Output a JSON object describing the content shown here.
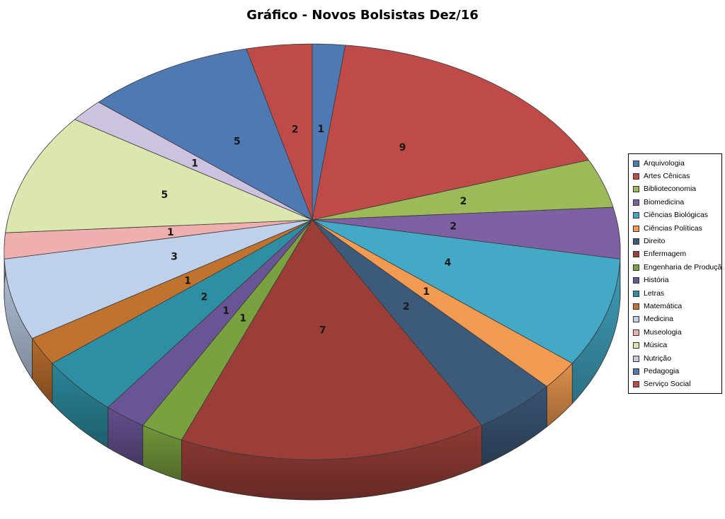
{
  "chart_data": {
    "type": "pie",
    "style": "3d",
    "title": "Gráfico - Novos Bolsistas Dez/16",
    "total": 50,
    "start_angle_deg": 0,
    "direction": "clockwise",
    "legend_position": "right",
    "data_labels": "value",
    "series": [
      {
        "label": "Arquivologia",
        "value": 1,
        "color": "#4E79B2"
      },
      {
        "label": "Artes Cênicas",
        "value": 9,
        "color": "#BE4B47"
      },
      {
        "label": "Biblioteconomia",
        "value": 2,
        "color": "#9CBA58"
      },
      {
        "label": "Biomedicina",
        "value": 2,
        "color": "#7E61A3"
      },
      {
        "label": "Ciências Biológicas",
        "value": 4,
        "color": "#43A9C6"
      },
      {
        "label": "Ciências Políticas",
        "value": 1,
        "color": "#F09B51"
      },
      {
        "label": "Direito",
        "value": 2,
        "color": "#3C5A7A"
      },
      {
        "label": "Enfermagem",
        "value": 7,
        "color": "#9B3E38"
      },
      {
        "label": "Engenharia de Produção",
        "value": 1,
        "color": "#7AA13F"
      },
      {
        "label": "História",
        "value": 1,
        "color": "#695596"
      },
      {
        "label": "Letras",
        "value": 2,
        "color": "#2E8FA4"
      },
      {
        "label": "Matemática",
        "value": 1,
        "color": "#C0722F"
      },
      {
        "label": "Medicina",
        "value": 3,
        "color": "#BFD1EA"
      },
      {
        "label": "Museologia",
        "value": 1,
        "color": "#F0AFAF"
      },
      {
        "label": "Música",
        "value": 5,
        "color": "#DBE7AE"
      },
      {
        "label": "Nutrição",
        "value": 1,
        "color": "#CDC2E0"
      },
      {
        "label": "Pedagogia",
        "value": 5,
        "color": "#4E79B2"
      },
      {
        "label": "Serviço Social",
        "value": 2,
        "color": "#BE4B47"
      }
    ]
  }
}
